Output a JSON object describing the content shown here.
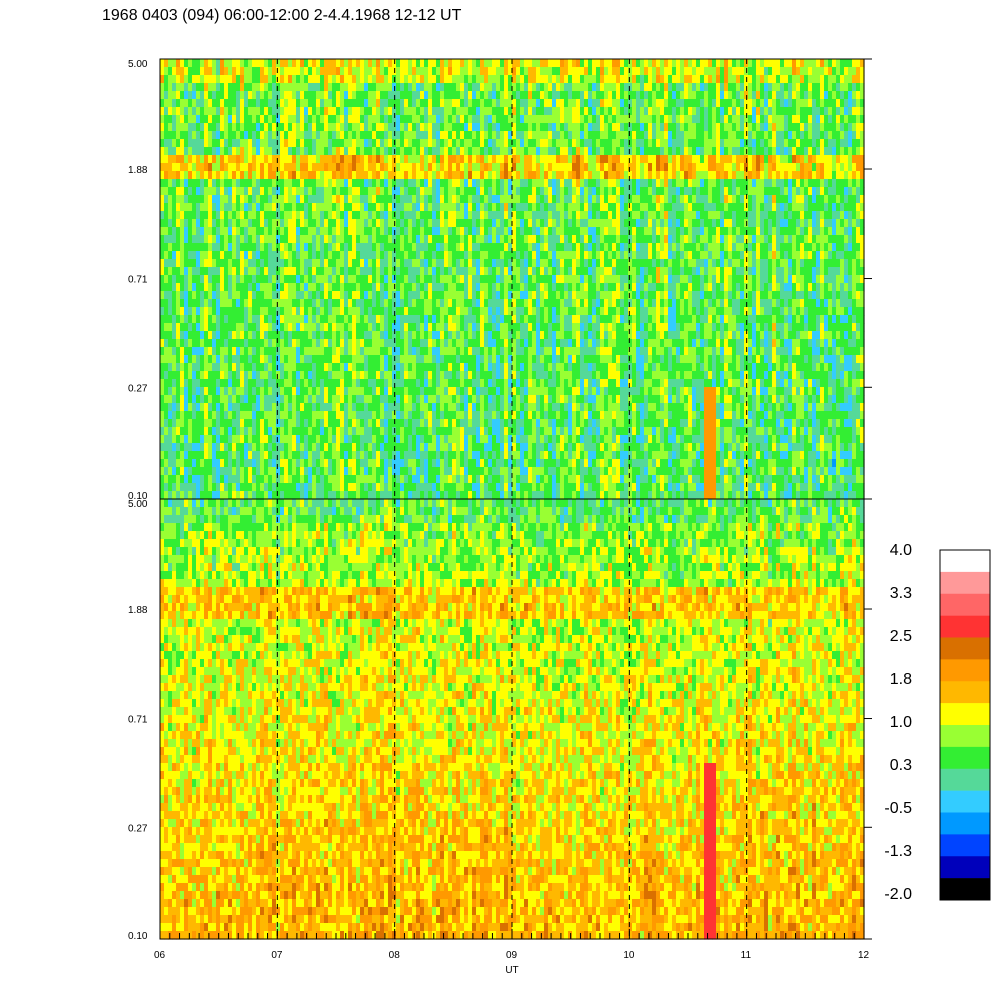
{
  "chart_data": {
    "type": "heatmap",
    "title": "1968 0403 (094) 06:00-12:00 2-4.4.1968  12-12 UT",
    "xlabel": "UT",
    "x_ticks": [
      "06",
      "07",
      "08",
      "09",
      "10",
      "11",
      "12"
    ],
    "xlim": [
      6,
      12
    ],
    "dashed_lines_at": [
      7,
      8,
      9,
      10,
      11
    ],
    "y_scale": "log",
    "ylim": [
      0.1,
      5.0
    ],
    "panels": [
      {
        "y_ticks": [
          "5.00",
          "1.88",
          "0.71",
          "0.27",
          "0.10"
        ]
      },
      {
        "y_ticks": [
          "5.00",
          "1.88",
          "0.71",
          "0.27",
          "0.10"
        ]
      }
    ],
    "colorbar": {
      "labels": [
        "4.0",
        "3.3",
        "2.5",
        "1.8",
        "1.0",
        "0.3",
        "-0.5",
        "-1.3",
        "-2.0"
      ],
      "range": [
        -2.0,
        4.0
      ],
      "colors": [
        "#ffffff",
        "#ff9999",
        "#ff6666",
        "#ff3333",
        "#d97000",
        "#ff9900",
        "#ffb800",
        "#ffff00",
        "#99ff33",
        "#33ee33",
        "#55d999",
        "#33ccff",
        "#0099ff",
        "#0044ff",
        "#0000bb",
        "#000000"
      ]
    }
  }
}
